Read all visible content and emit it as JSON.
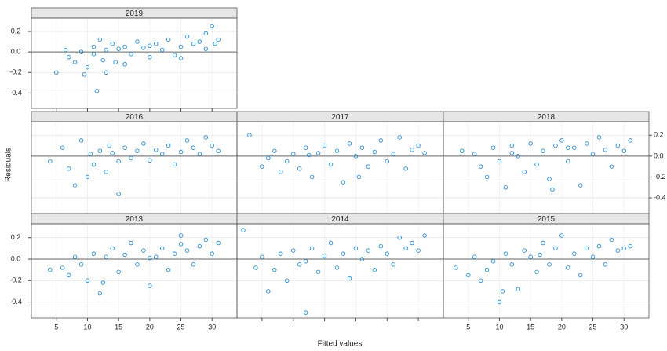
{
  "chart_data": {
    "type": "scatter",
    "xlabel": "Fitted values",
    "ylabel": "Residuals",
    "xlim": [
      1,
      34
    ],
    "ylim": [
      -0.55,
      0.33
    ],
    "xticks": [
      5,
      10,
      15,
      20,
      25,
      30
    ],
    "yticks": [
      -0.4,
      -0.2,
      {
        "value": 0,
        "label": "0.0"
      },
      0.2
    ],
    "reference_y": 0,
    "grid": true,
    "color": "#2b8fd1",
    "panels": [
      {
        "title": "2019",
        "x": [
          5,
          6.5,
          7,
          8,
          9,
          9.5,
          10,
          11,
          11.5,
          12,
          12.5,
          13,
          14,
          14.5,
          15,
          16,
          17,
          18,
          19,
          20,
          21,
          22,
          23,
          24,
          25,
          26,
          27,
          28,
          29,
          30,
          30.5,
          31,
          11,
          13,
          16,
          20,
          25,
          29
        ],
        "y": [
          -0.2,
          0.02,
          -0.05,
          -0.1,
          0,
          -0.22,
          -0.15,
          0.05,
          -0.38,
          0.12,
          -0.08,
          0.02,
          0.08,
          -0.1,
          0.03,
          0.05,
          -0.02,
          0.1,
          0.04,
          -0.05,
          0.08,
          0.02,
          0.12,
          -0.03,
          0.05,
          0.15,
          0.08,
          0.1,
          0.03,
          0.25,
          0.08,
          0.12,
          -0.02,
          -0.2,
          -0.12,
          0.06,
          -0.06,
          0.18
        ]
      },
      {
        "title": "2016",
        "x": [
          4,
          6,
          7,
          8,
          9,
          10,
          10.5,
          11,
          12,
          13,
          13.5,
          14,
          15,
          16,
          17,
          18,
          19,
          20,
          21,
          22,
          23,
          24,
          25,
          26,
          27,
          28,
          29,
          30,
          31,
          15
        ],
        "y": [
          -0.05,
          0.08,
          -0.12,
          -0.28,
          0.15,
          -0.2,
          0.02,
          -0.08,
          0.05,
          -0.15,
          0.1,
          0.03,
          -0.05,
          0.08,
          -0.02,
          0.05,
          0.12,
          -0.04,
          0.06,
          0.02,
          0.1,
          -0.08,
          0.04,
          0.15,
          0.08,
          0.02,
          0.18,
          0.1,
          0.05,
          -0.36
        ]
      },
      {
        "title": "2017",
        "x": [
          3,
          5,
          6,
          7,
          8,
          9,
          10,
          11,
          12,
          13,
          14,
          15,
          16,
          17,
          18,
          19,
          20,
          21,
          22,
          23,
          24,
          25,
          26,
          27,
          28,
          29,
          30,
          31,
          12.5,
          20.5
        ],
        "y": [
          0.2,
          -0.1,
          -0.02,
          0.05,
          -0.15,
          -0.05,
          0.02,
          -0.12,
          0.08,
          -0.2,
          0.03,
          0.1,
          -0.08,
          0.05,
          -0.25,
          0.12,
          0,
          0.08,
          -0.1,
          0.04,
          0.15,
          -0.05,
          0.02,
          0.18,
          -0.12,
          0.06,
          0.1,
          0.03,
          0.01,
          -0.2
        ]
      },
      {
        "title": "2018",
        "x": [
          4,
          6,
          7,
          8,
          9,
          10,
          11,
          12,
          13,
          14,
          15,
          16,
          17,
          18,
          19,
          20,
          21,
          22,
          23,
          24,
          25,
          26,
          27,
          28,
          29,
          30,
          31,
          12,
          18.5,
          21
        ],
        "y": [
          0.05,
          0.02,
          -0.1,
          -0.2,
          0.08,
          -0.05,
          -0.3,
          0.1,
          0,
          -0.15,
          0.12,
          -0.08,
          0.05,
          -0.22,
          0.1,
          0.15,
          -0.05,
          0.08,
          -0.28,
          0.12,
          0.02,
          0.18,
          0.06,
          -0.1,
          0.1,
          0.05,
          0.15,
          0.03,
          -0.32,
          0.08
        ]
      },
      {
        "title": "2013",
        "x": [
          4,
          6,
          7,
          8,
          9,
          10,
          11,
          12,
          13,
          14,
          15,
          16,
          17,
          18,
          19,
          20,
          21,
          22,
          23,
          24,
          25,
          26,
          27,
          28,
          29,
          30,
          31,
          12.5,
          20,
          25
        ],
        "y": [
          -0.1,
          -0.08,
          -0.15,
          0.02,
          -0.05,
          -0.2,
          0.05,
          -0.32,
          0.02,
          0.1,
          -0.12,
          0.04,
          0.15,
          -0.05,
          0.08,
          -0.25,
          0.02,
          0.1,
          -0.1,
          0.05,
          0.22,
          0.08,
          -0.05,
          0.12,
          0.18,
          0.05,
          0.15,
          -0.22,
          0.01,
          0.14
        ]
      },
      {
        "title": "2014",
        "x": [
          2,
          4,
          5,
          6,
          7,
          8,
          9,
          10,
          11,
          12,
          13,
          14,
          15,
          16,
          17,
          18,
          19,
          20,
          21,
          22,
          23,
          24,
          25,
          26,
          27,
          28,
          29,
          30,
          31,
          12
        ],
        "y": [
          0.27,
          -0.08,
          0.02,
          -0.3,
          -0.1,
          0.05,
          -0.2,
          0.08,
          -0.05,
          -0.5,
          0.1,
          -0.12,
          0.03,
          0.15,
          -0.08,
          0.05,
          -0.18,
          0.1,
          0,
          0.08,
          -0.1,
          0.12,
          0.05,
          -0.05,
          0.2,
          0.1,
          0.15,
          0.08,
          0.22,
          -0.02
        ]
      },
      {
        "title": "2015",
        "x": [
          3,
          5,
          6,
          7,
          8,
          9,
          10,
          11,
          12,
          13,
          14,
          15,
          16,
          17,
          18,
          19,
          20,
          21,
          22,
          23,
          24,
          25,
          26,
          27,
          28,
          29,
          30,
          31,
          10.5,
          16.5
        ],
        "y": [
          -0.08,
          -0.15,
          0.02,
          -0.2,
          -0.1,
          -0.02,
          -0.4,
          0.05,
          -0.05,
          -0.28,
          0.08,
          0.02,
          -0.12,
          0.15,
          -0.05,
          0.1,
          0.22,
          -0.08,
          0.05,
          -0.15,
          0.1,
          0.02,
          0.12,
          -0.05,
          0.18,
          0.08,
          0.1,
          0.12,
          -0.3,
          0.04
        ]
      }
    ]
  }
}
